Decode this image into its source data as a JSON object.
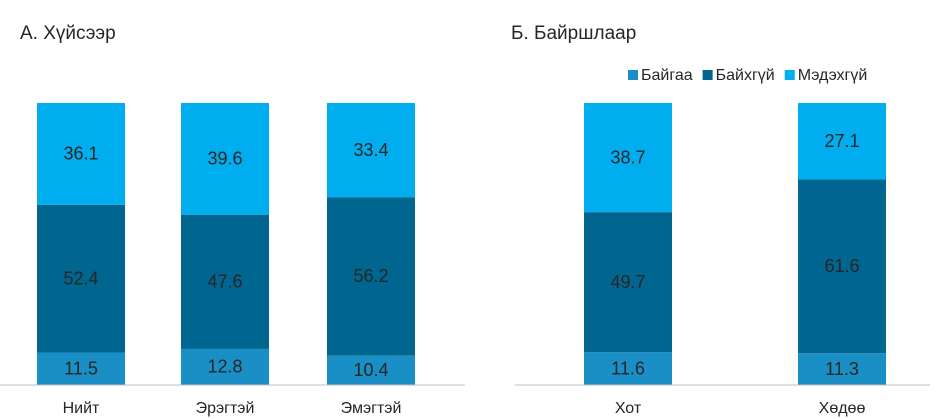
{
  "chart_data": [
    {
      "type": "stacked-bar",
      "title": "А. Хүйсээр",
      "categories": [
        "Нийт",
        "Эрэгтэй",
        "Эмэгтэй"
      ],
      "series": [
        {
          "color": "#1a8fc6",
          "values": [
            11.5,
            12.8,
            10.4
          ]
        },
        {
          "color": "#00658f",
          "values": [
            52.4,
            47.6,
            56.2
          ]
        },
        {
          "color": "#00adee",
          "values": [
            36.1,
            39.6,
            33.4
          ]
        }
      ],
      "ylim": [
        0,
        100
      ]
    },
    {
      "type": "stacked-bar",
      "title": "Б. Байршлаар",
      "categories": [
        "Хот",
        "Хөдөө"
      ],
      "series": [
        {
          "name": "Байгаа",
          "color": "#1a8fc6",
          "values": [
            11.6,
            11.3
          ]
        },
        {
          "name": "Байхгүй",
          "color": "#00658f",
          "values": [
            49.7,
            61.6
          ]
        },
        {
          "name": "Мэдэхгүй",
          "color": "#00adee",
          "values": [
            38.7,
            27.1
          ]
        }
      ],
      "ylim": [
        0,
        100
      ],
      "legend": "top-right"
    }
  ]
}
